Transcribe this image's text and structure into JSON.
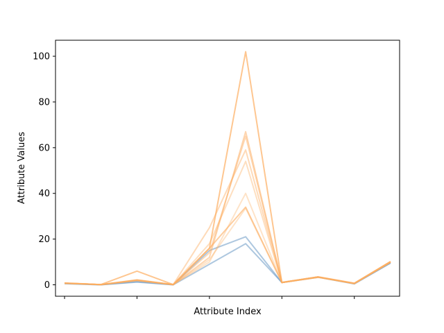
{
  "chart_data": {
    "type": "line",
    "title": "",
    "xlabel": "Attribute Index",
    "ylabel": "Attribute Values",
    "x": [
      0,
      1,
      2,
      3,
      4,
      5,
      6,
      7,
      8,
      9
    ],
    "xlim": [
      -0.25,
      9.25
    ],
    "ylim": [
      -5,
      107
    ],
    "yticks": [
      0,
      20,
      40,
      60,
      80,
      100
    ],
    "xticks": [
      0,
      2,
      4,
      6,
      8
    ],
    "xtick_labels": [
      "",
      "",
      "",
      "",
      ""
    ],
    "grid": false,
    "legend": "none",
    "series": [
      {
        "color": "#5b8fbf",
        "alpha": 0.5,
        "values": [
          0.5,
          0.0,
          1.2,
          0.0,
          9.0,
          18.0,
          1.0,
          3.3,
          0.4,
          9.5
        ]
      },
      {
        "color": "#5b8fbf",
        "alpha": 0.5,
        "values": [
          0.6,
          0.0,
          1.4,
          0.0,
          15.0,
          21.0,
          1.0,
          3.4,
          0.5,
          9.6
        ]
      },
      {
        "color": "#fdae61",
        "alpha": 0.7,
        "values": [
          0.8,
          0.1,
          6.0,
          0.1,
          16.0,
          102.0,
          1.0,
          3.5,
          0.7,
          10.2
        ]
      },
      {
        "color": "#fdae61",
        "alpha": 0.5,
        "values": [
          0.7,
          0.1,
          2.0,
          0.1,
          12.0,
          67.0,
          1.0,
          3.4,
          0.6,
          10.0
        ]
      },
      {
        "color": "#fdae61",
        "alpha": 0.45,
        "values": [
          0.7,
          0.1,
          2.2,
          0.1,
          14.0,
          65.0,
          1.0,
          3.4,
          0.6,
          10.1
        ]
      },
      {
        "color": "#fdae61",
        "alpha": 0.45,
        "values": [
          0.7,
          0.1,
          2.1,
          0.1,
          25.0,
          59.0,
          1.1,
          3.4,
          0.6,
          10.0
        ]
      },
      {
        "color": "#fdae61",
        "alpha": 0.4,
        "values": [
          0.7,
          0.1,
          2.0,
          0.1,
          18.0,
          54.0,
          1.0,
          3.3,
          0.6,
          9.9
        ]
      },
      {
        "color": "#fdae61",
        "alpha": 0.35,
        "values": [
          0.7,
          0.1,
          1.9,
          0.1,
          10.0,
          40.0,
          1.0,
          3.3,
          0.6,
          9.8
        ]
      },
      {
        "color": "#fdae61",
        "alpha": 0.6,
        "values": [
          0.7,
          0.1,
          2.0,
          0.1,
          16.0,
          34.0,
          1.0,
          3.4,
          0.6,
          10.0
        ]
      },
      {
        "color": "#fdae61",
        "alpha": 0.35,
        "values": [
          0.7,
          0.1,
          1.8,
          0.1,
          11.0,
          33.5,
          1.0,
          3.3,
          0.6,
          9.9
        ]
      }
    ]
  }
}
